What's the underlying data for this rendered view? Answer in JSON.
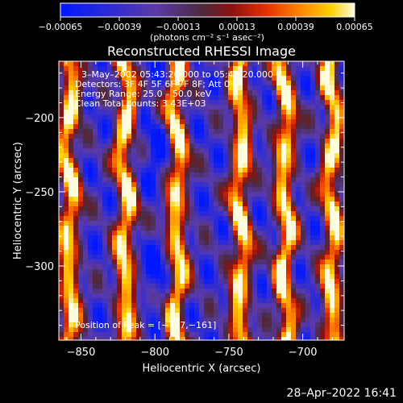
{
  "chart_data": {
    "type": "heatmap",
    "title": "Reconstructed RHESSI Image",
    "xlabel": "Heliocentric X (arcsec)",
    "ylabel": "Heliocentric Y (arcsec)",
    "xlim": [
      -865,
      -672
    ],
    "ylim": [
      -350,
      -162
    ],
    "x_ticks": [
      -850,
      -800,
      -750,
      -700
    ],
    "x_tick_labels": [
      "−850",
      "−800",
      "−750",
      "−700"
    ],
    "y_ticks": [
      -200,
      -250,
      -300
    ],
    "y_tick_labels": [
      "−200",
      "−250",
      "−300"
    ],
    "colorbar": {
      "min": -0.00065,
      "max": 0.00065,
      "ticks": [
        -0.00065,
        -0.00039,
        -0.00013,
        0.00013,
        0.00039,
        0.00065
      ],
      "tick_labels": [
        "−0.00065",
        "−0.00039",
        "−0.00013",
        "0.00013",
        "0.00039",
        "0.00065"
      ],
      "unit_label": "(photons cm⁻² s⁻¹ asec⁻²)"
    },
    "annotations": {
      "time_range": "3–May–2002 05:43:20.000 to 05:45:20.000",
      "detectors": "Detectors: 3F 4F 5F 6F 7F 8F; Att 0",
      "energy": "Energy Range: 25.0 – 50.0 keV",
      "clean": "Clean    Total counts: 3.43E+03",
      "peak": "Position of Peak = [−737,−161]"
    },
    "pattern": {
      "description": "vertical bright/dark stripes",
      "bright_stripe_x": [
        -858,
        -820,
        -785,
        -742,
        -712,
        -680
      ]
    }
  },
  "timestamp": "28–Apr–2022 16:41"
}
